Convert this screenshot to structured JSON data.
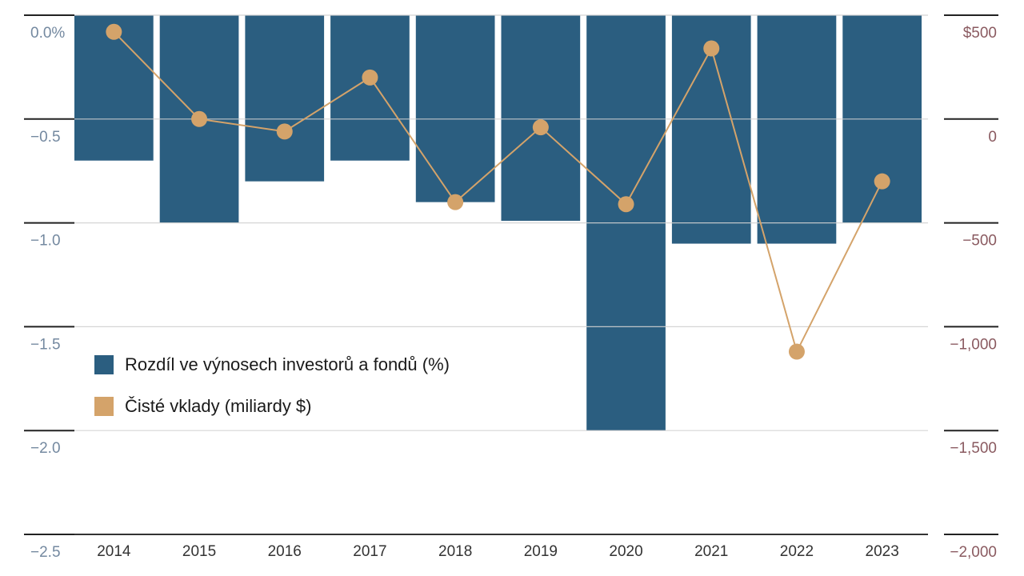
{
  "chart_data": {
    "type": "bar",
    "categories": [
      "2014",
      "2015",
      "2016",
      "2017",
      "2018",
      "2019",
      "2020",
      "2021",
      "2022",
      "2023"
    ],
    "series": [
      {
        "name": "Rozdíl ve výnosech investorů a fondů (%)",
        "type": "bar",
        "axis": "left",
        "color": "#2b5e80",
        "values": [
          -0.7,
          -1.0,
          -0.8,
          -0.7,
          -0.9,
          -0.99,
          -2.0,
          -1.1,
          -1.1,
          -1.0
        ]
      },
      {
        "name": "Čisté vklady (miliardy $)",
        "type": "line",
        "axis": "right",
        "color": "#d4a36a",
        "values": [
          420,
          0,
          -60,
          200,
          -400,
          -40,
          -410,
          340,
          -1120,
          -300
        ]
      }
    ],
    "y_left": {
      "ylim": [
        -2.5,
        0
      ],
      "ticks": [
        0,
        -0.5,
        -1.0,
        -1.5,
        -2.0,
        -2.5
      ],
      "tick_labels": [
        "0.0%",
        "−0.5",
        "−1.0",
        "−1.5",
        "−2.0",
        "−2.5"
      ]
    },
    "y_right": {
      "ylim": [
        -2000,
        500
      ],
      "ticks": [
        500,
        0,
        -500,
        -1000,
        -1500,
        -2000
      ],
      "tick_labels": [
        "$500",
        "0",
        "−500",
        "−1,000",
        "−1,500",
        "−2,000"
      ]
    },
    "grid": true,
    "legend_position": "left-middle"
  },
  "legend": [
    {
      "label": "Rozdíl ve výnosech investorů a fondů (%)",
      "color": "#2b5e80"
    },
    {
      "label": "Čisté vklady (miliardy $)",
      "color": "#d4a36a"
    }
  ]
}
